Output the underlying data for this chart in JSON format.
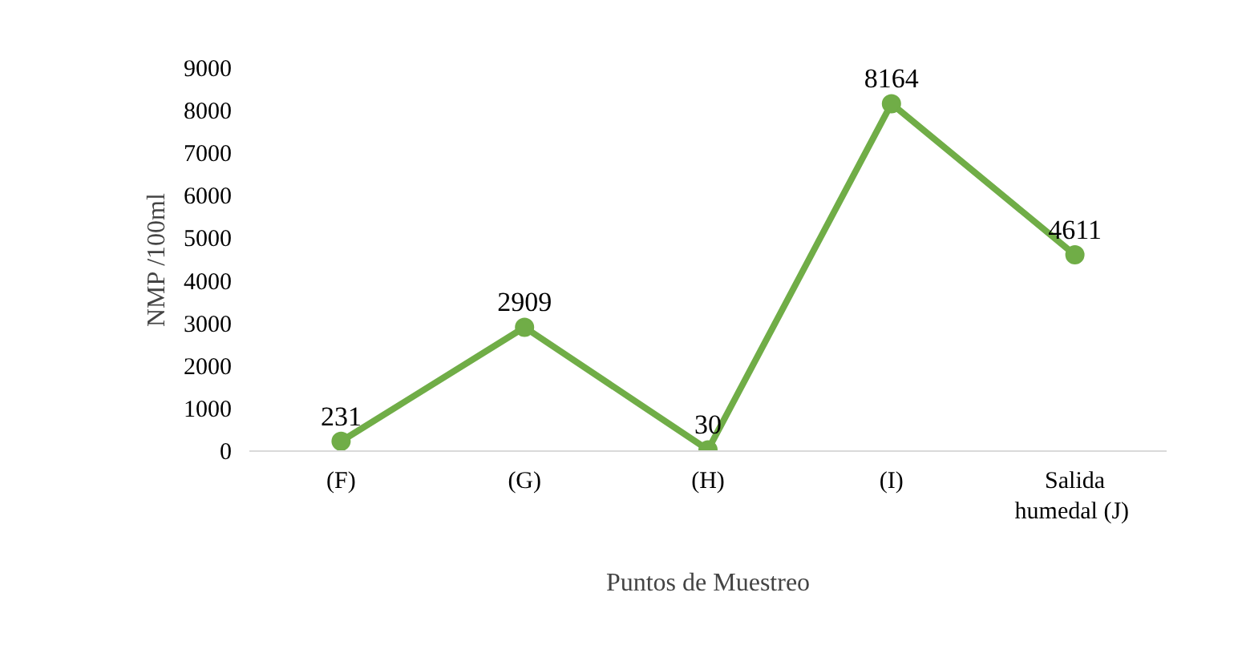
{
  "chart_data": {
    "type": "line",
    "xlabel": "Puntos de Muestreo",
    "ylabel": "NMP /100ml",
    "categories": [
      "(F)",
      "(G)",
      "(H)",
      "(I)",
      "Salida humedal  (J)"
    ],
    "series": [
      {
        "color": "#70ad47",
        "values": [
          231,
          2909,
          30,
          8164,
          4611
        ]
      }
    ],
    "ylim": [
      0,
      9000
    ],
    "yticks": [
      0,
      1000,
      2000,
      3000,
      4000,
      5000,
      6000,
      7000,
      8000,
      9000
    ],
    "grid": false,
    "marker": "circle",
    "line_style": "solid",
    "data_labels": true
  }
}
